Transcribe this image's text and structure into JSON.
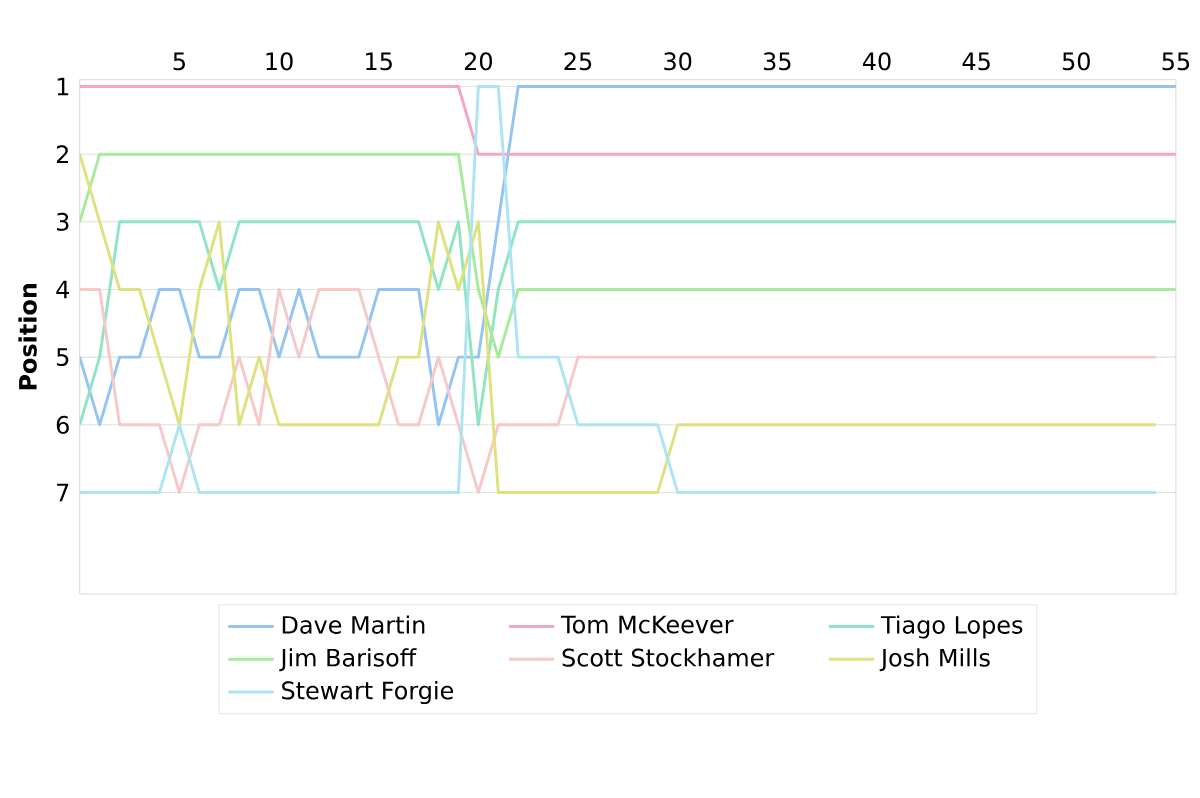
{
  "chart_data": {
    "type": "line",
    "ylabel": "Position",
    "xlim": [
      0,
      55
    ],
    "xticks": [
      5,
      10,
      15,
      20,
      25,
      30,
      35,
      40,
      45,
      50,
      55
    ],
    "ylim": [
      8.5,
      0.9
    ],
    "yticks": [
      1,
      2,
      3,
      4,
      5,
      6,
      7
    ],
    "grid": "y",
    "legend": "bottom",
    "marker": "none",
    "line_style": "solid",
    "x": [
      0,
      1,
      2,
      3,
      4,
      5,
      6,
      7,
      8,
      9,
      10,
      11,
      12,
      13,
      14,
      15,
      16,
      17,
      18,
      19,
      20,
      21,
      22,
      23,
      24,
      25,
      26,
      27,
      28,
      29,
      30,
      31,
      32,
      33,
      34,
      35,
      36,
      37,
      38,
      39,
      40,
      41,
      42,
      43,
      44,
      45,
      46,
      47,
      48,
      49,
      50,
      51,
      52,
      53,
      54,
      55
    ],
    "series": [
      {
        "name": "Dave Martin",
        "color": "#94c4f0",
        "values": [
          5,
          6,
          5,
          5,
          4,
          4,
          5,
          5,
          4,
          4,
          5,
          4,
          5,
          5,
          5,
          4,
          4,
          4,
          6,
          5,
          5,
          3,
          1,
          1,
          1,
          1,
          1,
          1,
          1,
          1,
          1,
          1,
          1,
          1,
          1,
          1,
          1,
          1,
          1,
          1,
          1,
          1,
          1,
          1,
          1,
          1,
          1,
          1,
          1,
          1,
          1,
          1,
          1,
          1,
          1,
          1
        ]
      },
      {
        "name": "Tom McKeever",
        "color": "#f4a6c8",
        "values": [
          1,
          1,
          1,
          1,
          1,
          1,
          1,
          1,
          1,
          1,
          1,
          1,
          1,
          1,
          1,
          1,
          1,
          1,
          1,
          1,
          2,
          2,
          2,
          2,
          2,
          2,
          2,
          2,
          2,
          2,
          2,
          2,
          2,
          2,
          2,
          2,
          2,
          2,
          2,
          2,
          2,
          2,
          2,
          2,
          2,
          2,
          2,
          2,
          2,
          2,
          2,
          2,
          2,
          2,
          2,
          2
        ]
      },
      {
        "name": "Tiago Lopes",
        "color": "#8fe5c0",
        "values": [
          6,
          5,
          3,
          3,
          3,
          3,
          3,
          4,
          3,
          3,
          3,
          3,
          3,
          3,
          3,
          3,
          3,
          3,
          4,
          3,
          6,
          4,
          3,
          3,
          3,
          3,
          3,
          3,
          3,
          3,
          3,
          3,
          3,
          3,
          3,
          3,
          3,
          3,
          3,
          3,
          3,
          3,
          3,
          3,
          3,
          3,
          3,
          3,
          3,
          3,
          3,
          3,
          3,
          3,
          3,
          3
        ]
      },
      {
        "name": "Jim Barisoff",
        "color": "#a7ea9d",
        "values": [
          3,
          2,
          2,
          2,
          2,
          2,
          2,
          2,
          2,
          2,
          2,
          2,
          2,
          2,
          2,
          2,
          2,
          2,
          2,
          2,
          4,
          5,
          4,
          4,
          4,
          4,
          4,
          4,
          4,
          4,
          4,
          4,
          4,
          4,
          4,
          4,
          4,
          4,
          4,
          4,
          4,
          4,
          4,
          4,
          4,
          4,
          4,
          4,
          4,
          4,
          4,
          4,
          4,
          4,
          4,
          4
        ]
      },
      {
        "name": "Scott Stockhamer",
        "color": "#f7c8c8",
        "values": [
          4,
          4,
          6,
          6,
          6,
          7,
          6,
          6,
          5,
          6,
          4,
          5,
          4,
          4,
          4,
          5,
          6,
          6,
          5,
          6,
          7,
          6,
          6,
          6,
          6,
          5,
          5,
          5,
          5,
          5,
          5,
          5,
          5,
          5,
          5,
          5,
          5,
          5,
          5,
          5,
          5,
          5,
          5,
          5,
          5,
          5,
          5,
          5,
          5,
          5,
          5,
          5,
          5,
          5,
          5,
          null
        ]
      },
      {
        "name": "Josh Mills",
        "color": "#dde27f",
        "values": [
          2,
          3,
          4,
          4,
          5,
          6,
          4,
          3,
          6,
          5,
          6,
          6,
          6,
          6,
          6,
          6,
          5,
          5,
          3,
          4,
          3,
          7,
          7,
          7,
          7,
          7,
          7,
          7,
          7,
          7,
          6,
          6,
          6,
          6,
          6,
          6,
          6,
          6,
          6,
          6,
          6,
          6,
          6,
          6,
          6,
          6,
          6,
          6,
          6,
          6,
          6,
          6,
          6,
          6,
          6,
          null
        ]
      },
      {
        "name": "Stewart Forgie",
        "color": "#ace4f4",
        "values": [
          7,
          7,
          7,
          7,
          7,
          6,
          7,
          7,
          7,
          7,
          7,
          7,
          7,
          7,
          7,
          7,
          7,
          7,
          7,
          7,
          1,
          1,
          5,
          5,
          5,
          6,
          6,
          6,
          6,
          6,
          7,
          7,
          7,
          7,
          7,
          7,
          7,
          7,
          7,
          7,
          7,
          7,
          7,
          7,
          7,
          7,
          7,
          7,
          7,
          7,
          7,
          7,
          7,
          7,
          7,
          null
        ]
      }
    ]
  }
}
